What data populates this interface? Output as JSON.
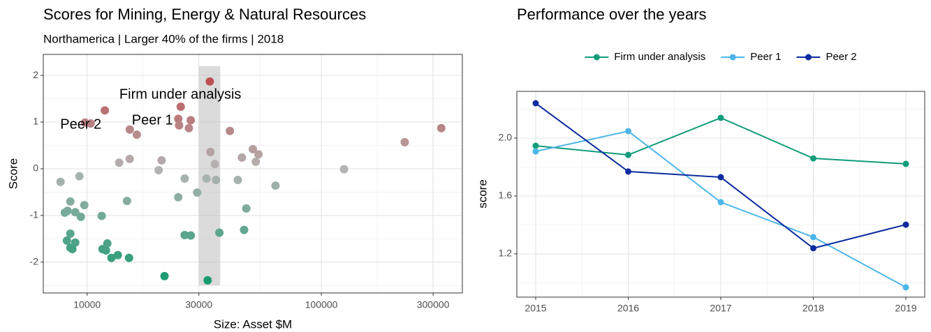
{
  "chart_data": [
    {
      "type": "scatter",
      "title": "Scores for Mining, Energy & Natural Resources",
      "subtitle": "Northamerica | Larger 40% of the firms | 2018",
      "x_label": "Size: Asset $M",
      "y_label": "Score",
      "xlog": true,
      "grid": true,
      "minor_grid": true,
      "xlim": [
        6500,
        400000
      ],
      "xticks": [
        10000,
        30000,
        100000,
        300000
      ],
      "ylim": [
        -2.66,
        2.45
      ],
      "yticks": [
        -2,
        -1,
        0,
        1,
        2
      ],
      "color_low": "#1a9a72",
      "color_mid": "#b4b4b4",
      "color_high": "#c0343a",
      "highlight": {
        "xlim": [
          30000,
          37000
        ],
        "ylim": [
          -2.5,
          2.2
        ],
        "color": "#bdbdbd"
      },
      "annotations": [
        {
          "text": "Firm under analysis",
          "x": 25000,
          "y": 1.58
        },
        {
          "text": "Peer 1",
          "x": 19000,
          "y": 1.03
        },
        {
          "text": "Peer 2",
          "x": 9400,
          "y": 0.94
        }
      ],
      "x": [
        33400,
        11900,
        9800,
        10350,
        25100,
        24500,
        27700,
        24700,
        27200,
        15200,
        16300,
        40700,
        227000,
        325000,
        33600,
        51000,
        53900,
        45800,
        52500,
        35100,
        15200,
        13700,
        20800,
        20200,
        125000,
        7700,
        9270,
        26100,
        32300,
        35500,
        44000,
        63700,
        29500,
        24500,
        14800,
        8480,
        9730,
        8030,
        8250,
        8900,
        9400,
        11540,
        47800,
        46800,
        36700,
        26100,
        27700,
        8480,
        8200,
        8900,
        8480,
        8650,
        12200,
        11630,
        12040,
        13530,
        12700,
        15100,
        21400,
        32700
      ],
      "values": [
        1.87,
        1.25,
        0.99,
        0.97,
        1.33,
        1.07,
        1.04,
        0.93,
        0.87,
        0.84,
        0.73,
        0.81,
        0.57,
        0.87,
        0.36,
        0.42,
        0.31,
        0.24,
        0.15,
        0.1,
        0.21,
        0.13,
        0.18,
        -0.03,
        -0.01,
        -0.28,
        -0.16,
        -0.21,
        -0.21,
        -0.24,
        -0.24,
        -0.36,
        -0.51,
        -0.61,
        -0.69,
        -0.7,
        -0.78,
        -0.94,
        -0.9,
        -0.93,
        -1.03,
        -1.01,
        -0.85,
        -1.31,
        -1.37,
        -1.42,
        -1.43,
        -1.39,
        -1.54,
        -1.58,
        -1.69,
        -1.72,
        -1.6,
        -1.72,
        -1.75,
        -1.85,
        -1.91,
        -1.91,
        -2.3,
        -2.39
      ]
    },
    {
      "type": "line",
      "title": "Performance over the years",
      "y_label": "score",
      "grid": true,
      "minor_grid": true,
      "legend": "top",
      "categories": [
        "2015",
        "2016",
        "2017",
        "2018",
        "2019"
      ],
      "ylim": [
        0.901,
        2.323
      ],
      "yticks": [
        {
          "value": 1.2,
          "label": "1.2"
        },
        {
          "value": 1.6,
          "label": "1.6"
        },
        {
          "value": 2.0,
          "label": "2.0"
        }
      ],
      "series": [
        {
          "name": "Firm under analysis",
          "color": "#119c7a",
          "values": [
            1.947,
            1.884,
            2.14,
            1.86,
            1.822
          ]
        },
        {
          "name": "Peer 1",
          "color": "#4db6e8",
          "values": [
            1.908,
            2.048,
            1.557,
            1.316,
            0.969
          ]
        },
        {
          "name": "Peer 2",
          "color": "#0c2c9e",
          "values": [
            2.241,
            1.769,
            1.73,
            1.239,
            1.402
          ]
        }
      ]
    }
  ]
}
